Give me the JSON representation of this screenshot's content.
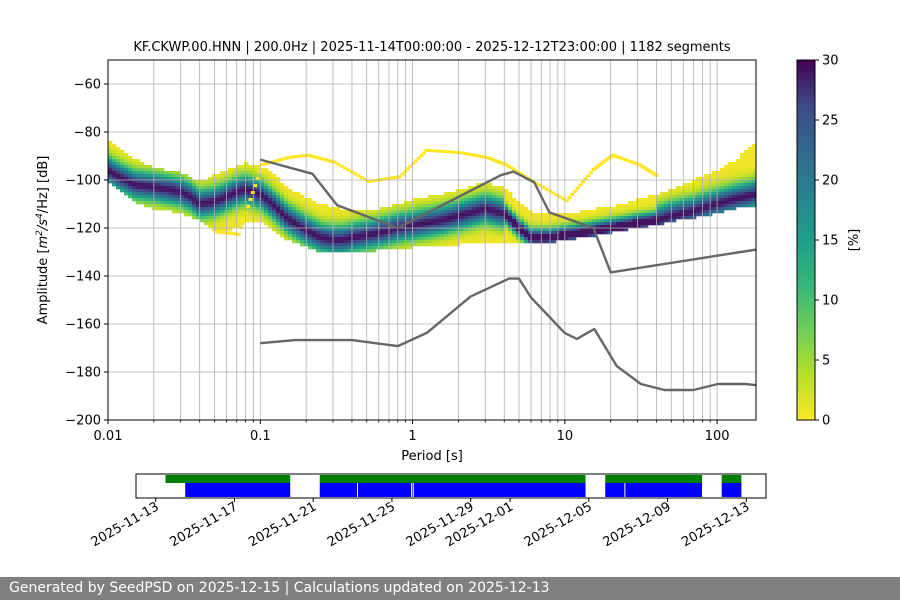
{
  "chart_data": {
    "type": "heatmap",
    "title": "KF.CKWP.00.HNN | 200.0Hz | 2025-11-14T00:00:00 - 2025-12-12T23:00:00 | 1182 segments",
    "xlabel": "Period [s]",
    "ylabel_parts": {
      "prefix": "Amplitude [",
      "m": "m",
      "exp1": "2",
      "mid": "/s",
      "exp2": "4",
      "suffix": "/Hz] [dB]"
    },
    "xscale": "log",
    "xlim": [
      0.01,
      180
    ],
    "ylim": [
      -200,
      -50
    ],
    "x_ticks": [
      {
        "value": 0.01,
        "label": "0.01"
      },
      {
        "value": 0.1,
        "label": "0.1"
      },
      {
        "value": 1,
        "label": "1"
      },
      {
        "value": 10,
        "label": "10"
      },
      {
        "value": 100,
        "label": "100"
      }
    ],
    "y_ticks": [
      {
        "value": -60,
        "label": "−60"
      },
      {
        "value": -80,
        "label": "−80"
      },
      {
        "value": -100,
        "label": "−100"
      },
      {
        "value": -120,
        "label": "−120"
      },
      {
        "value": -140,
        "label": "−140"
      },
      {
        "value": -160,
        "label": "−160"
      },
      {
        "value": -180,
        "label": "−180"
      },
      {
        "value": -200,
        "label": "−200"
      }
    ],
    "grid": true,
    "colorbar": {
      "label": "[%]",
      "range": [
        0,
        30
      ],
      "ticks": [
        {
          "value": 0,
          "label": "0"
        },
        {
          "value": 5,
          "label": "5"
        },
        {
          "value": 10,
          "label": "10"
        },
        {
          "value": 15,
          "label": "15"
        },
        {
          "value": 20,
          "label": "20"
        },
        {
          "value": 25,
          "label": "25"
        },
        {
          "value": 30,
          "label": "30"
        }
      ],
      "colormap": "viridis_r"
    },
    "psd_mode": {
      "x": [
        0.01,
        0.012,
        0.015,
        0.02,
        0.025,
        0.03,
        0.035,
        0.04,
        0.05,
        0.06,
        0.07,
        0.08,
        0.1,
        0.12,
        0.15,
        0.2,
        0.25,
        0.3,
        0.35,
        0.4,
        0.5,
        0.6,
        0.8,
        1,
        1.5,
        2,
        3,
        4,
        5,
        6,
        8,
        10,
        13,
        16,
        20,
        25,
        30,
        40,
        50,
        70,
        100,
        130,
        180
      ],
      "y": [
        -96,
        -99,
        -102,
        -103,
        -104,
        -105,
        -107,
        -110,
        -109,
        -107,
        -105,
        -104,
        -106,
        -110,
        -116,
        -121,
        -124,
        -125,
        -125,
        -124,
        -123,
        -122,
        -120,
        -119,
        -117,
        -115,
        -112,
        -114,
        -120,
        -124,
        -124,
        -123,
        -122,
        -121,
        -120,
        -119,
        -118,
        -117,
        -115,
        -113,
        -110,
        -108,
        -106
      ]
    },
    "psd_band": {
      "x": [
        0.01,
        0.012,
        0.015,
        0.02,
        0.025,
        0.03,
        0.035,
        0.04,
        0.05,
        0.06,
        0.07,
        0.08,
        0.1,
        0.12,
        0.15,
        0.2,
        0.25,
        0.3,
        0.35,
        0.4,
        0.5,
        0.6,
        0.8,
        1,
        1.5,
        2,
        3,
        4,
        5,
        6,
        8,
        10,
        13,
        16,
        20,
        25,
        30,
        40,
        50,
        70,
        100,
        130,
        180
      ],
      "upper": [
        -83,
        -87,
        -91,
        -95,
        -96,
        -97,
        -99,
        -101,
        -98,
        -96,
        -94,
        -93,
        -94,
        -97,
        -103,
        -107,
        -110,
        -111,
        -112,
        -112,
        -112,
        -112,
        -110,
        -108,
        -106,
        -104,
        -101,
        -103,
        -109,
        -113,
        -114,
        -114,
        -113,
        -112,
        -111,
        -110,
        -108,
        -106,
        -104,
        -100,
        -96,
        -92,
        -84
      ],
      "lower": [
        -101,
        -104,
        -109,
        -112,
        -113,
        -114,
        -115,
        -117,
        -121,
        -121,
        -120,
        -118,
        -117,
        -121,
        -125,
        -128,
        -130,
        -130,
        -130,
        -130,
        -130,
        -129,
        -129,
        -128,
        -128,
        -127,
        -126,
        -126,
        -126,
        -126,
        -126,
        -125,
        -124,
        -123,
        -122,
        -121,
        -120,
        -119,
        -117,
        -116,
        -114,
        -112,
        -111
      ]
    },
    "psd_outliers": {
      "x": [
        0.05,
        0.07,
        0.1,
        0.15,
        0.2,
        0.3,
        0.5,
        0.8,
        1.2,
        2,
        3,
        4,
        6,
        10,
        15,
        20,
        30,
        40
      ],
      "y": [
        -121,
        -122,
        -93,
        -90,
        -89,
        -92,
        -100,
        -98,
        -87,
        -88,
        -90,
        -93,
        -100,
        -108,
        -95,
        -89,
        -93,
        -98
      ]
    },
    "noise_models": [
      {
        "name": "high noise model",
        "x": [
          0.1,
          0.22,
          0.32,
          0.8,
          3.8,
          4.6,
          6.3,
          7.9,
          15.4,
          20,
          180
        ],
        "y": [
          -91.5,
          -97.4,
          -110.5,
          -120,
          -98,
          -96.5,
          -101,
          -113.5,
          -120,
          -138.5,
          -129
        ]
      },
      {
        "name": "low noise model",
        "x": [
          0.1,
          0.17,
          0.4,
          0.8,
          1.24,
          2.4,
          4.3,
          5,
          6,
          10,
          12,
          15.6,
          21.9,
          31.6,
          45,
          70,
          101,
          154,
          180
        ],
        "y": [
          -168,
          -166.7,
          -166.7,
          -169.2,
          -163.7,
          -148.6,
          -141.1,
          -141.1,
          -149,
          -163.8,
          -166.2,
          -162.1,
          -177.5,
          -185,
          -187.5,
          -187.5,
          -185,
          -185,
          -185.5
        ]
      }
    ],
    "timeline": {
      "dates": [
        "2025-11-13",
        "2025-11-17",
        "2025-11-21",
        "2025-11-25",
        "2025-11-29",
        "2025-12-01",
        "2025-12-05",
        "2025-12-09",
        "2025-12-13"
      ],
      "range": [
        "2025-11-12T00:00",
        "2025-12-14T00:00"
      ],
      "green_segments": [
        [
          "2025-11-13T12:00",
          "2025-11-19T20:00"
        ],
        [
          "2025-11-21T08:00",
          "2025-12-04T20:00"
        ],
        [
          "2025-12-05T20:00",
          "2025-12-10T18:00"
        ],
        [
          "2025-12-11T18:00",
          "2025-12-12T18:00"
        ]
      ],
      "blue_segments": [
        [
          "2025-11-14T12:00",
          "2025-11-19T20:00"
        ],
        [
          "2025-11-21T08:00",
          "2025-12-04T20:00"
        ],
        [
          "2025-12-05T20:00",
          "2025-12-10T18:00"
        ],
        [
          "2025-12-11T18:00",
          "2025-12-12T18:00"
        ]
      ],
      "gap_lines": [
        "2025-11-23T06:00",
        "2025-11-26T00:00",
        "2025-11-26T02:00",
        "2025-12-06T20:00"
      ]
    }
  },
  "colors": {
    "model_line": "#666666",
    "green_bar": "#008000",
    "blue_bar": "#0000ff",
    "grid": "#b0b0b0",
    "footer_bg": "#808080"
  },
  "footer": {
    "text": "Generated by SeedPSD on 2025-12-15 | Calculations updated on 2025-12-13"
  }
}
